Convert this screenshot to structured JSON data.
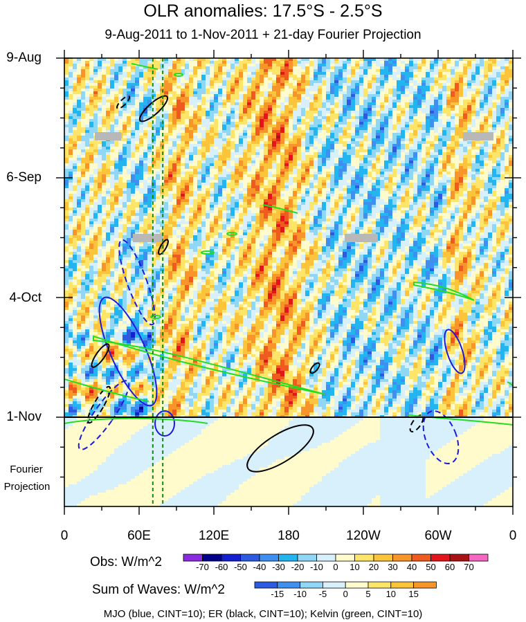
{
  "chart_data": {
    "type": "heatmap",
    "title": "OLR anomalies: 17.5°S - 2.5°S",
    "subtitle": "9-Aug-2011 to 1-Nov-2011 + 21-day Fourier Projection",
    "y_ticks": [
      "9-Aug",
      "6-Sep",
      "4-Oct",
      "1-Nov"
    ],
    "y_range": [
      "9-Aug-2011",
      "22-Nov-2011"
    ],
    "x_ticks": [
      "0",
      "60E",
      "120E",
      "180",
      "120W",
      "60W",
      "0"
    ],
    "x_range_deg_east": [
      0,
      360
    ],
    "projection_label_line1": "Fourier",
    "projection_label_line2": "Projection",
    "obs_colorbar": {
      "label": "Obs: W/m^2",
      "levels": [
        -70,
        -60,
        -50,
        -40,
        -30,
        -20,
        -10,
        0,
        10,
        20,
        30,
        40,
        50,
        60,
        70
      ],
      "colors": [
        "#8a2be2",
        "#00008b",
        "#1420d0",
        "#2c5ae0",
        "#3f8ff0",
        "#23b5f0",
        "#8fd7f5",
        "#d7f0fb",
        "#fffbcc",
        "#fde56a",
        "#fbc43a",
        "#f7952b",
        "#ef5a1f",
        "#e2161a",
        "#a81416",
        "#f467c3"
      ]
    },
    "waves_colorbar": {
      "label": "Sum of Waves: W/m^2",
      "levels": [
        -15,
        -10,
        -5,
        0,
        5,
        10,
        15
      ],
      "colors": [
        "#2c5ae0",
        "#3f8ff0",
        "#8fd7f5",
        "#d7f0fb",
        "#fffbcc",
        "#fde56a",
        "#fbc43a",
        "#f7952b"
      ]
    },
    "legend_text": "MJO (blue, CINT=10); ER (black, CINT=10); Kelvin (green, CINT=10)",
    "series": [
      {
        "name": "MJO",
        "color": "#1a1adc"
      },
      {
        "name": "ER",
        "color": "#000000"
      },
      {
        "name": "Kelvin",
        "color": "#22dd22"
      }
    ],
    "missing_data_color": "#b8b8b8",
    "reference_lines_deg_east": [
      71,
      79
    ]
  }
}
